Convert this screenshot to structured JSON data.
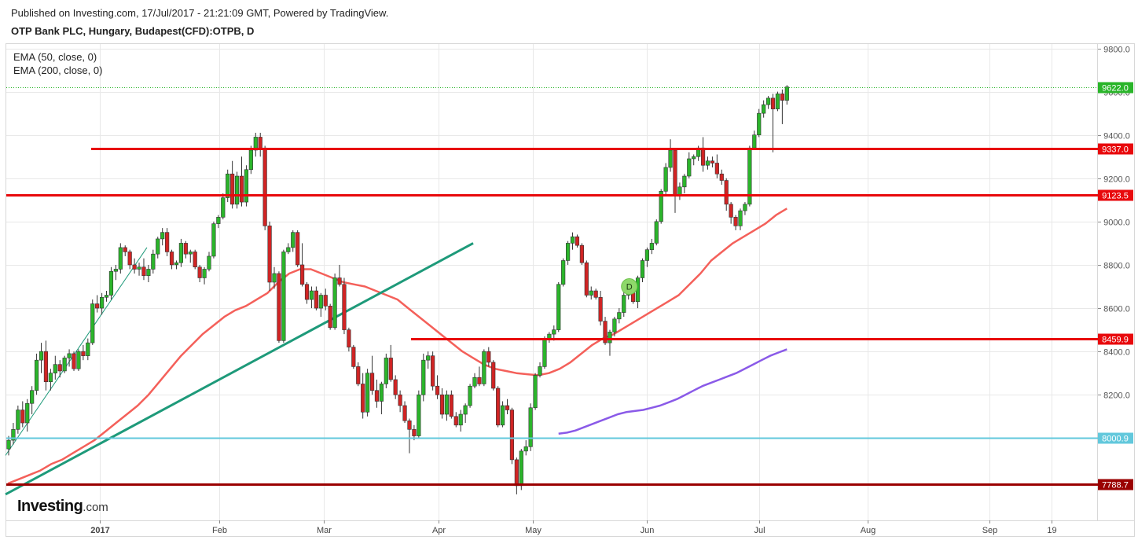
{
  "header": {
    "published": "Published on Investing.com, 17/Jul/2017 - 21:21:09 GMT, Powered by TradingView.",
    "symbol": "OTP Bank PLC, Hungary, Budapest(CFD):OTPB, D"
  },
  "legend": {
    "ema1": "EMA (50, close, 0)",
    "ema2": "EMA (200, close, 0)"
  },
  "logo": {
    "brand": "Investing",
    "suffix": ".com"
  },
  "colors": {
    "up": "#2bb52b",
    "down": "#d02424",
    "ema50": "#f4605a",
    "ema200": "#8a5ae8",
    "trendline": "#1e9a7a",
    "resistance": "#e8090c",
    "support_cyan": "#62c8dc",
    "support_dark": "#9a0000",
    "last_price_line": "#2ab52a",
    "grid": "#e8e8e8"
  },
  "chart_data": {
    "type": "candlestick",
    "interval": "D",
    "ylim": [
      7620,
      9820
    ],
    "y_ticks": [
      8000,
      8200,
      8400,
      8600,
      8800,
      9000,
      9200,
      9400,
      9600,
      9800
    ],
    "y_tick_labels": [
      "8000.0",
      "8200.0",
      "8400.0",
      "8600.0",
      "8800.0",
      "9000.0",
      "9200.0",
      "9400.0",
      "9600.0",
      "9800.0"
    ],
    "x_ticks": [
      {
        "label": "2017",
        "bold": true
      },
      {
        "label": "Feb"
      },
      {
        "label": "Mar"
      },
      {
        "label": "Apr"
      },
      {
        "label": "May"
      },
      {
        "label": "Jun"
      },
      {
        "label": "Jul"
      },
      {
        "label": "Aug"
      },
      {
        "label": "Sep"
      },
      {
        "label": "19"
      }
    ],
    "horizontal_levels": [
      {
        "value": 9622.0,
        "label": "9622.0",
        "color": "#2ab52a",
        "style": "dotted",
        "role": "last-price"
      },
      {
        "value": 9337.0,
        "label": "9337.0",
        "color": "#e8090c",
        "style": "solid"
      },
      {
        "value": 9123.5,
        "label": "9123.5",
        "color": "#e8090c",
        "style": "solid"
      },
      {
        "value": 8459.9,
        "label": "8459.9",
        "color": "#e8090c",
        "style": "solid"
      },
      {
        "value": 8000.9,
        "label": "8000.9",
        "color": "#62c8dc",
        "style": "solid"
      },
      {
        "value": 7788.7,
        "label": "7788.7",
        "color": "#9a0000",
        "style": "solid"
      }
    ],
    "candles": [
      {
        "o": 7950,
        "h": 8010,
        "l": 7920,
        "c": 7990
      },
      {
        "o": 7990,
        "h": 8070,
        "l": 7970,
        "c": 8040
      },
      {
        "o": 8040,
        "h": 8150,
        "l": 8020,
        "c": 8130
      },
      {
        "o": 8130,
        "h": 8170,
        "l": 8050,
        "c": 8070
      },
      {
        "o": 8070,
        "h": 8180,
        "l": 8030,
        "c": 8160
      },
      {
        "o": 8160,
        "h": 8240,
        "l": 8110,
        "c": 8220
      },
      {
        "o": 8220,
        "h": 8390,
        "l": 8200,
        "c": 8360
      },
      {
        "o": 8360,
        "h": 8440,
        "l": 8300,
        "c": 8400
      },
      {
        "o": 8400,
        "h": 8450,
        "l": 8220,
        "c": 8260
      },
      {
        "o": 8260,
        "h": 8320,
        "l": 8220,
        "c": 8300
      },
      {
        "o": 8300,
        "h": 8380,
        "l": 8270,
        "c": 8340
      },
      {
        "o": 8340,
        "h": 8360,
        "l": 8280,
        "c": 8310
      },
      {
        "o": 8310,
        "h": 8380,
        "l": 8300,
        "c": 8370
      },
      {
        "o": 8370,
        "h": 8410,
        "l": 8330,
        "c": 8390
      },
      {
        "o": 8390,
        "h": 8400,
        "l": 8310,
        "c": 8320
      },
      {
        "o": 8320,
        "h": 8410,
        "l": 8310,
        "c": 8400
      },
      {
        "o": 8400,
        "h": 8430,
        "l": 8360,
        "c": 8380
      },
      {
        "o": 8380,
        "h": 8460,
        "l": 8360,
        "c": 8440
      },
      {
        "o": 8440,
        "h": 8640,
        "l": 8430,
        "c": 8620
      },
      {
        "o": 8620,
        "h": 8660,
        "l": 8580,
        "c": 8600
      },
      {
        "o": 8600,
        "h": 8670,
        "l": 8570,
        "c": 8650
      },
      {
        "o": 8650,
        "h": 8680,
        "l": 8630,
        "c": 8660
      },
      {
        "o": 8660,
        "h": 8790,
        "l": 8640,
        "c": 8770
      },
      {
        "o": 8770,
        "h": 8800,
        "l": 8730,
        "c": 8780
      },
      {
        "o": 8780,
        "h": 8900,
        "l": 8760,
        "c": 8880
      },
      {
        "o": 8880,
        "h": 8890,
        "l": 8840,
        "c": 8860
      },
      {
        "o": 8860,
        "h": 8870,
        "l": 8780,
        "c": 8800
      },
      {
        "o": 8800,
        "h": 8830,
        "l": 8760,
        "c": 8780
      },
      {
        "o": 8780,
        "h": 8810,
        "l": 8750,
        "c": 8790
      },
      {
        "o": 8790,
        "h": 8830,
        "l": 8730,
        "c": 8750
      },
      {
        "o": 8750,
        "h": 8800,
        "l": 8720,
        "c": 8780
      },
      {
        "o": 8780,
        "h": 8870,
        "l": 8760,
        "c": 8850
      },
      {
        "o": 8850,
        "h": 8930,
        "l": 8830,
        "c": 8920
      },
      {
        "o": 8920,
        "h": 8970,
        "l": 8890,
        "c": 8950
      },
      {
        "o": 8950,
        "h": 8970,
        "l": 8840,
        "c": 8860
      },
      {
        "o": 8860,
        "h": 8870,
        "l": 8780,
        "c": 8800
      },
      {
        "o": 8800,
        "h": 8820,
        "l": 8780,
        "c": 8810
      },
      {
        "o": 8810,
        "h": 8920,
        "l": 8790,
        "c": 8900
      },
      {
        "o": 8900,
        "h": 8910,
        "l": 8830,
        "c": 8850
      },
      {
        "o": 8850,
        "h": 8870,
        "l": 8810,
        "c": 8860
      },
      {
        "o": 8860,
        "h": 8870,
        "l": 8780,
        "c": 8790
      },
      {
        "o": 8790,
        "h": 8800,
        "l": 8720,
        "c": 8740
      },
      {
        "o": 8740,
        "h": 8790,
        "l": 8710,
        "c": 8780
      },
      {
        "o": 8780,
        "h": 8860,
        "l": 8770,
        "c": 8840
      },
      {
        "o": 8840,
        "h": 9000,
        "l": 8830,
        "c": 8990
      },
      {
        "o": 8990,
        "h": 9030,
        "l": 8970,
        "c": 9020
      },
      {
        "o": 9020,
        "h": 9130,
        "l": 9010,
        "c": 9110
      },
      {
        "o": 9110,
        "h": 9240,
        "l": 9090,
        "c": 9220
      },
      {
        "o": 9220,
        "h": 9280,
        "l": 9060,
        "c": 9080
      },
      {
        "o": 9080,
        "h": 9230,
        "l": 9060,
        "c": 9210
      },
      {
        "o": 9210,
        "h": 9300,
        "l": 9070,
        "c": 9090
      },
      {
        "o": 9090,
        "h": 9260,
        "l": 9070,
        "c": 9240
      },
      {
        "o": 9240,
        "h": 9350,
        "l": 9220,
        "c": 9330
      },
      {
        "o": 9330,
        "h": 9410,
        "l": 9300,
        "c": 9390
      },
      {
        "o": 9390,
        "h": 9410,
        "l": 9300,
        "c": 9340
      },
      {
        "o": 9340,
        "h": 9350,
        "l": 8960,
        "c": 8980
      },
      {
        "o": 8980,
        "h": 9000,
        "l": 8680,
        "c": 8720
      },
      {
        "o": 8720,
        "h": 8790,
        "l": 8690,
        "c": 8760
      },
      {
        "o": 8760,
        "h": 8770,
        "l": 8440,
        "c": 8450
      },
      {
        "o": 8450,
        "h": 8870,
        "l": 8440,
        "c": 8860
      },
      {
        "o": 8860,
        "h": 8900,
        "l": 8850,
        "c": 8880
      },
      {
        "o": 8880,
        "h": 8960,
        "l": 8860,
        "c": 8950
      },
      {
        "o": 8950,
        "h": 8960,
        "l": 8790,
        "c": 8800
      },
      {
        "o": 8800,
        "h": 8900,
        "l": 8700,
        "c": 8710
      },
      {
        "o": 8710,
        "h": 8720,
        "l": 8620,
        "c": 8640
      },
      {
        "o": 8640,
        "h": 8700,
        "l": 8600,
        "c": 8680
      },
      {
        "o": 8680,
        "h": 8700,
        "l": 8590,
        "c": 8600
      },
      {
        "o": 8600,
        "h": 8670,
        "l": 8560,
        "c": 8660
      },
      {
        "o": 8660,
        "h": 8690,
        "l": 8590,
        "c": 8610
      },
      {
        "o": 8610,
        "h": 8620,
        "l": 8500,
        "c": 8510
      },
      {
        "o": 8510,
        "h": 8760,
        "l": 8500,
        "c": 8740
      },
      {
        "o": 8740,
        "h": 8800,
        "l": 8700,
        "c": 8710
      },
      {
        "o": 8710,
        "h": 8740,
        "l": 8480,
        "c": 8500
      },
      {
        "o": 8500,
        "h": 8510,
        "l": 8400,
        "c": 8420
      },
      {
        "o": 8420,
        "h": 8430,
        "l": 8320,
        "c": 8330
      },
      {
        "o": 8330,
        "h": 8350,
        "l": 8240,
        "c": 8250
      },
      {
        "o": 8250,
        "h": 8300,
        "l": 8090,
        "c": 8120
      },
      {
        "o": 8120,
        "h": 8320,
        "l": 8100,
        "c": 8300
      },
      {
        "o": 8300,
        "h": 8380,
        "l": 8200,
        "c": 8220
      },
      {
        "o": 8220,
        "h": 8270,
        "l": 8140,
        "c": 8170
      },
      {
        "o": 8170,
        "h": 8260,
        "l": 8110,
        "c": 8250
      },
      {
        "o": 8250,
        "h": 8390,
        "l": 8230,
        "c": 8370
      },
      {
        "o": 8370,
        "h": 8430,
        "l": 8260,
        "c": 8270
      },
      {
        "o": 8270,
        "h": 8290,
        "l": 8180,
        "c": 8200
      },
      {
        "o": 8200,
        "h": 8220,
        "l": 8120,
        "c": 8150
      },
      {
        "o": 8150,
        "h": 8170,
        "l": 8070,
        "c": 8080
      },
      {
        "o": 8080,
        "h": 8090,
        "l": 7930,
        "c": 8040
      },
      {
        "o": 8040,
        "h": 8060,
        "l": 7990,
        "c": 8010
      },
      {
        "o": 8010,
        "h": 8220,
        "l": 8000,
        "c": 8200
      },
      {
        "o": 8200,
        "h": 8390,
        "l": 8170,
        "c": 8360
      },
      {
        "o": 8360,
        "h": 8400,
        "l": 8320,
        "c": 8380
      },
      {
        "o": 8380,
        "h": 8400,
        "l": 8220,
        "c": 8240
      },
      {
        "o": 8240,
        "h": 8290,
        "l": 8180,
        "c": 8200
      },
      {
        "o": 8200,
        "h": 8230,
        "l": 8090,
        "c": 8110
      },
      {
        "o": 8110,
        "h": 8220,
        "l": 8080,
        "c": 8200
      },
      {
        "o": 8200,
        "h": 8220,
        "l": 8090,
        "c": 8100
      },
      {
        "o": 8100,
        "h": 8120,
        "l": 8050,
        "c": 8060
      },
      {
        "o": 8060,
        "h": 8130,
        "l": 8030,
        "c": 8110
      },
      {
        "o": 8110,
        "h": 8160,
        "l": 8070,
        "c": 8150
      },
      {
        "o": 8150,
        "h": 8250,
        "l": 8140,
        "c": 8240
      },
      {
        "o": 8240,
        "h": 8300,
        "l": 8230,
        "c": 8280
      },
      {
        "o": 8280,
        "h": 8330,
        "l": 8240,
        "c": 8250
      },
      {
        "o": 8250,
        "h": 8410,
        "l": 8240,
        "c": 8400
      },
      {
        "o": 8400,
        "h": 8420,
        "l": 8330,
        "c": 8350
      },
      {
        "o": 8350,
        "h": 8360,
        "l": 8220,
        "c": 8230
      },
      {
        "o": 8230,
        "h": 8240,
        "l": 8050,
        "c": 8060
      },
      {
        "o": 8060,
        "h": 8170,
        "l": 8050,
        "c": 8150
      },
      {
        "o": 8150,
        "h": 8180,
        "l": 8110,
        "c": 8130
      },
      {
        "o": 8130,
        "h": 8140,
        "l": 7880,
        "c": 7900
      },
      {
        "o": 7900,
        "h": 7910,
        "l": 7740,
        "c": 7780
      },
      {
        "o": 7780,
        "h": 7950,
        "l": 7760,
        "c": 7940
      },
      {
        "o": 7940,
        "h": 7990,
        "l": 7920,
        "c": 7960
      },
      {
        "o": 7960,
        "h": 8160,
        "l": 7940,
        "c": 8140
      },
      {
        "o": 8140,
        "h": 8300,
        "l": 8130,
        "c": 8290
      },
      {
        "o": 8290,
        "h": 8350,
        "l": 8280,
        "c": 8330
      },
      {
        "o": 8330,
        "h": 8470,
        "l": 8320,
        "c": 8460
      },
      {
        "o": 8460,
        "h": 8490,
        "l": 8440,
        "c": 8480
      },
      {
        "o": 8480,
        "h": 8520,
        "l": 8450,
        "c": 8500
      },
      {
        "o": 8500,
        "h": 8720,
        "l": 8490,
        "c": 8710
      },
      {
        "o": 8710,
        "h": 8830,
        "l": 8700,
        "c": 8820
      },
      {
        "o": 8820,
        "h": 8910,
        "l": 8800,
        "c": 8900
      },
      {
        "o": 8900,
        "h": 8950,
        "l": 8870,
        "c": 8930
      },
      {
        "o": 8930,
        "h": 8940,
        "l": 8880,
        "c": 8890
      },
      {
        "o": 8890,
        "h": 8900,
        "l": 8800,
        "c": 8810
      },
      {
        "o": 8810,
        "h": 8820,
        "l": 8650,
        "c": 8660
      },
      {
        "o": 8660,
        "h": 8700,
        "l": 8640,
        "c": 8680
      },
      {
        "o": 8680,
        "h": 8690,
        "l": 8640,
        "c": 8650
      },
      {
        "o": 8650,
        "h": 8680,
        "l": 8520,
        "c": 8540
      },
      {
        "o": 8540,
        "h": 8560,
        "l": 8430,
        "c": 8440
      },
      {
        "o": 8440,
        "h": 8500,
        "l": 8380,
        "c": 8490
      },
      {
        "o": 8490,
        "h": 8560,
        "l": 8470,
        "c": 8550
      },
      {
        "o": 8550,
        "h": 8600,
        "l": 8530,
        "c": 8580
      },
      {
        "o": 8580,
        "h": 8680,
        "l": 8560,
        "c": 8660
      },
      {
        "o": 8660,
        "h": 8710,
        "l": 8640,
        "c": 8670
      },
      {
        "o": 8670,
        "h": 8690,
        "l": 8620,
        "c": 8630
      },
      {
        "o": 8630,
        "h": 8750,
        "l": 8600,
        "c": 8740
      },
      {
        "o": 8740,
        "h": 8830,
        "l": 8720,
        "c": 8820
      },
      {
        "o": 8820,
        "h": 8880,
        "l": 8790,
        "c": 8870
      },
      {
        "o": 8870,
        "h": 8920,
        "l": 8850,
        "c": 8900
      },
      {
        "o": 8900,
        "h": 9010,
        "l": 8890,
        "c": 9000
      },
      {
        "o": 9000,
        "h": 9150,
        "l": 8990,
        "c": 9140
      },
      {
        "o": 9140,
        "h": 9270,
        "l": 9120,
        "c": 9250
      },
      {
        "o": 9250,
        "h": 9380,
        "l": 9230,
        "c": 9330
      },
      {
        "o": 9330,
        "h": 9340,
        "l": 9040,
        "c": 9120
      },
      {
        "o": 9120,
        "h": 9180,
        "l": 9100,
        "c": 9160
      },
      {
        "o": 9160,
        "h": 9220,
        "l": 9130,
        "c": 9210
      },
      {
        "o": 9210,
        "h": 9320,
        "l": 9200,
        "c": 9290
      },
      {
        "o": 9290,
        "h": 9310,
        "l": 9260,
        "c": 9300
      },
      {
        "o": 9300,
        "h": 9350,
        "l": 9280,
        "c": 9340
      },
      {
        "o": 9340,
        "h": 9390,
        "l": 9230,
        "c": 9260
      },
      {
        "o": 9260,
        "h": 9300,
        "l": 9240,
        "c": 9280
      },
      {
        "o": 9280,
        "h": 9300,
        "l": 9250,
        "c": 9270
      },
      {
        "o": 9270,
        "h": 9310,
        "l": 9200,
        "c": 9220
      },
      {
        "o": 9220,
        "h": 9240,
        "l": 9170,
        "c": 9190
      },
      {
        "o": 9190,
        "h": 9200,
        "l": 9050,
        "c": 9080
      },
      {
        "o": 9080,
        "h": 9090,
        "l": 8990,
        "c": 9020
      },
      {
        "o": 9020,
        "h": 9030,
        "l": 8960,
        "c": 8980
      },
      {
        "o": 8980,
        "h": 9060,
        "l": 8960,
        "c": 9050
      },
      {
        "o": 9050,
        "h": 9090,
        "l": 9030,
        "c": 9080
      },
      {
        "o": 9080,
        "h": 9350,
        "l": 9070,
        "c": 9340
      },
      {
        "o": 9340,
        "h": 9420,
        "l": 9330,
        "c": 9400
      },
      {
        "o": 9400,
        "h": 9520,
        "l": 9390,
        "c": 9500
      },
      {
        "o": 9500,
        "h": 9560,
        "l": 9480,
        "c": 9540
      },
      {
        "o": 9540,
        "h": 9580,
        "l": 9520,
        "c": 9570
      },
      {
        "o": 9570,
        "h": 9590,
        "l": 9320,
        "c": 9520
      },
      {
        "o": 9520,
        "h": 9600,
        "l": 9510,
        "c": 9590
      },
      {
        "o": 9590,
        "h": 9610,
        "l": 9450,
        "c": 9560
      },
      {
        "o": 9560,
        "h": 9630,
        "l": 9540,
        "c": 9622
      }
    ],
    "ema50": [
      7790,
      7810,
      7830,
      7850,
      7880,
      7900,
      7930,
      7960,
      7990,
      8030,
      8070,
      8110,
      8150,
      8200,
      8260,
      8320,
      8380,
      8430,
      8480,
      8520,
      8560,
      8590,
      8610,
      8640,
      8670,
      8720,
      8760,
      8780,
      8780,
      8760,
      8740,
      8720,
      8710,
      8700,
      8680,
      8660,
      8640,
      8600,
      8560,
      8520,
      8480,
      8440,
      8400,
      8370,
      8340,
      8320,
      8310,
      8300,
      8295,
      8290,
      8300,
      8320,
      8350,
      8390,
      8430,
      8460,
      8480,
      8510,
      8540,
      8570,
      8600,
      8630,
      8660,
      8710,
      8760,
      8820,
      8860,
      8900,
      8930,
      8960,
      8990,
      9030,
      9060
    ],
    "ema200": [
      8020,
      8025,
      8035,
      8050,
      8065,
      8080,
      8095,
      8110,
      8120,
      8125,
      8130,
      8140,
      8150,
      8165,
      8180,
      8200,
      8220,
      8240,
      8255,
      8270,
      8285,
      8300,
      8320,
      8340,
      8360,
      8380,
      8395,
      8410
    ],
    "trendlines": [
      {
        "from": [
          0,
          7740
        ],
        "to": [
          99,
          8900
        ]
      },
      {
        "from": [
          0,
          7920
        ],
        "to": [
          29,
          8880
        ]
      }
    ],
    "marker": {
      "label": "D",
      "candle": 133,
      "value": 8700
    }
  }
}
